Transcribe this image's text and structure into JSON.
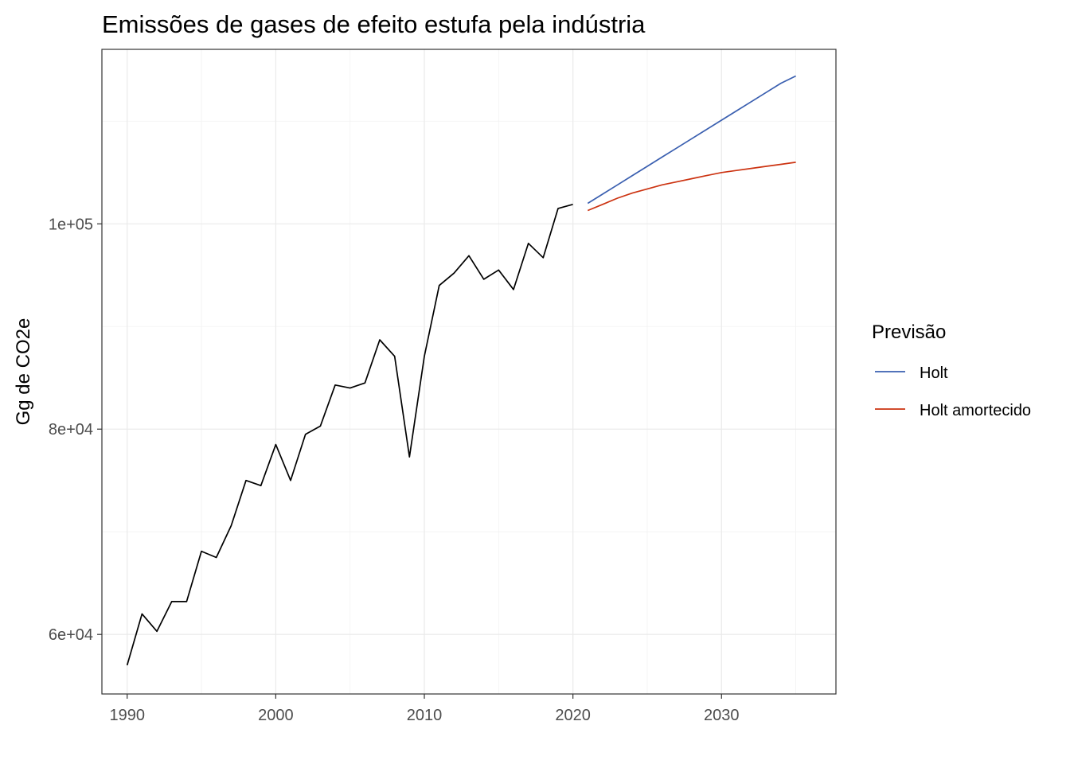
{
  "chart_data": {
    "type": "line",
    "title": "Emissões de gases de efeito estufa pela indústria",
    "xlabel": "",
    "ylabel": "Gg de CO2e",
    "xlim": [
      1988.3,
      2037.7
    ],
    "ylim": [
      54200,
      117000
    ],
    "x_ticks": [
      1990,
      2000,
      2010,
      2020,
      2030
    ],
    "x_tick_labels": [
      "1990",
      "2000",
      "2010",
      "2020",
      "2030"
    ],
    "y_ticks": [
      60000,
      80000,
      100000
    ],
    "y_tick_labels": [
      "6e+04",
      "8e+04",
      "1e+05"
    ],
    "grid": true,
    "legend": {
      "title": "Previsão",
      "position": "right"
    },
    "observed": {
      "color": "#000000",
      "x": [
        1990,
        1991,
        1992,
        1993,
        1994,
        1995,
        1996,
        1997,
        1998,
        1999,
        2000,
        2001,
        2002,
        2003,
        2004,
        2005,
        2006,
        2007,
        2008,
        2009,
        2010,
        2011,
        2012,
        2013,
        2014,
        2015,
        2016,
        2017,
        2018,
        2019,
        2020
      ],
      "y": [
        57000,
        62000,
        60300,
        63200,
        63200,
        68100,
        67500,
        70600,
        75000,
        74500,
        78500,
        75000,
        79500,
        80300,
        84300,
        84000,
        84500,
        88700,
        87100,
        77300,
        87100,
        94000,
        95200,
        96900,
        94600,
        95500,
        93600,
        98100,
        96700,
        101500,
        101900
      ]
    },
    "series": [
      {
        "name": "Holt",
        "color": "#3a5fb0",
        "x": [
          2021,
          2022,
          2023,
          2024,
          2025,
          2026,
          2027,
          2028,
          2029,
          2030,
          2031,
          2032,
          2033,
          2034,
          2035
        ],
        "y": [
          102000,
          102900,
          103800,
          104700,
          105600,
          106500,
          107400,
          108300,
          109200,
          110100,
          111000,
          111900,
          112800,
          113700,
          114400
        ]
      },
      {
        "name": "Holt amortecido",
        "color": "#cc3311",
        "x": [
          2021,
          2022,
          2023,
          2024,
          2025,
          2026,
          2027,
          2028,
          2029,
          2030,
          2031,
          2032,
          2033,
          2034,
          2035
        ],
        "y": [
          101300,
          101900,
          102500,
          103000,
          103400,
          103800,
          104100,
          104400,
          104700,
          105000,
          105200,
          105400,
          105600,
          105800,
          106000
        ]
      }
    ]
  }
}
